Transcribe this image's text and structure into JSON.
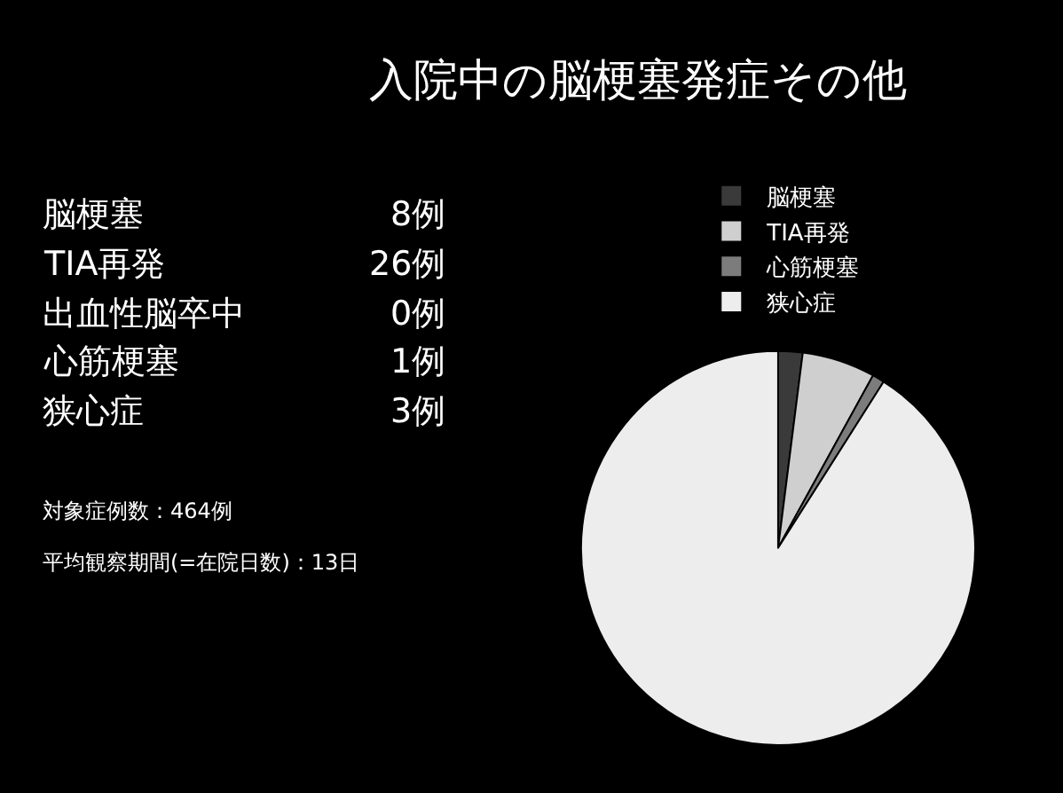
{
  "chart_data": {
    "type": "pie",
    "title": "入院中の脳梗塞発症その他",
    "categories": [
      "脳梗塞",
      "TIA再発",
      "心筋梗塞",
      "狭心症"
    ],
    "values": [
      2,
      6,
      1,
      91
    ],
    "colors": [
      "#3a3a3a",
      "#cfcfcf",
      "#7c7c7c",
      "#ededed"
    ],
    "legend": "top",
    "annotations": [
      "脳梗塞",
      "8例",
      "TIA再発",
      "26例",
      "出血性脳卒中",
      "0例",
      "心筋梗塞",
      "1例",
      "狭心症",
      "3例",
      "対象症例数：464例",
      "平均観察期間(=在院日数)：13日"
    ]
  }
}
